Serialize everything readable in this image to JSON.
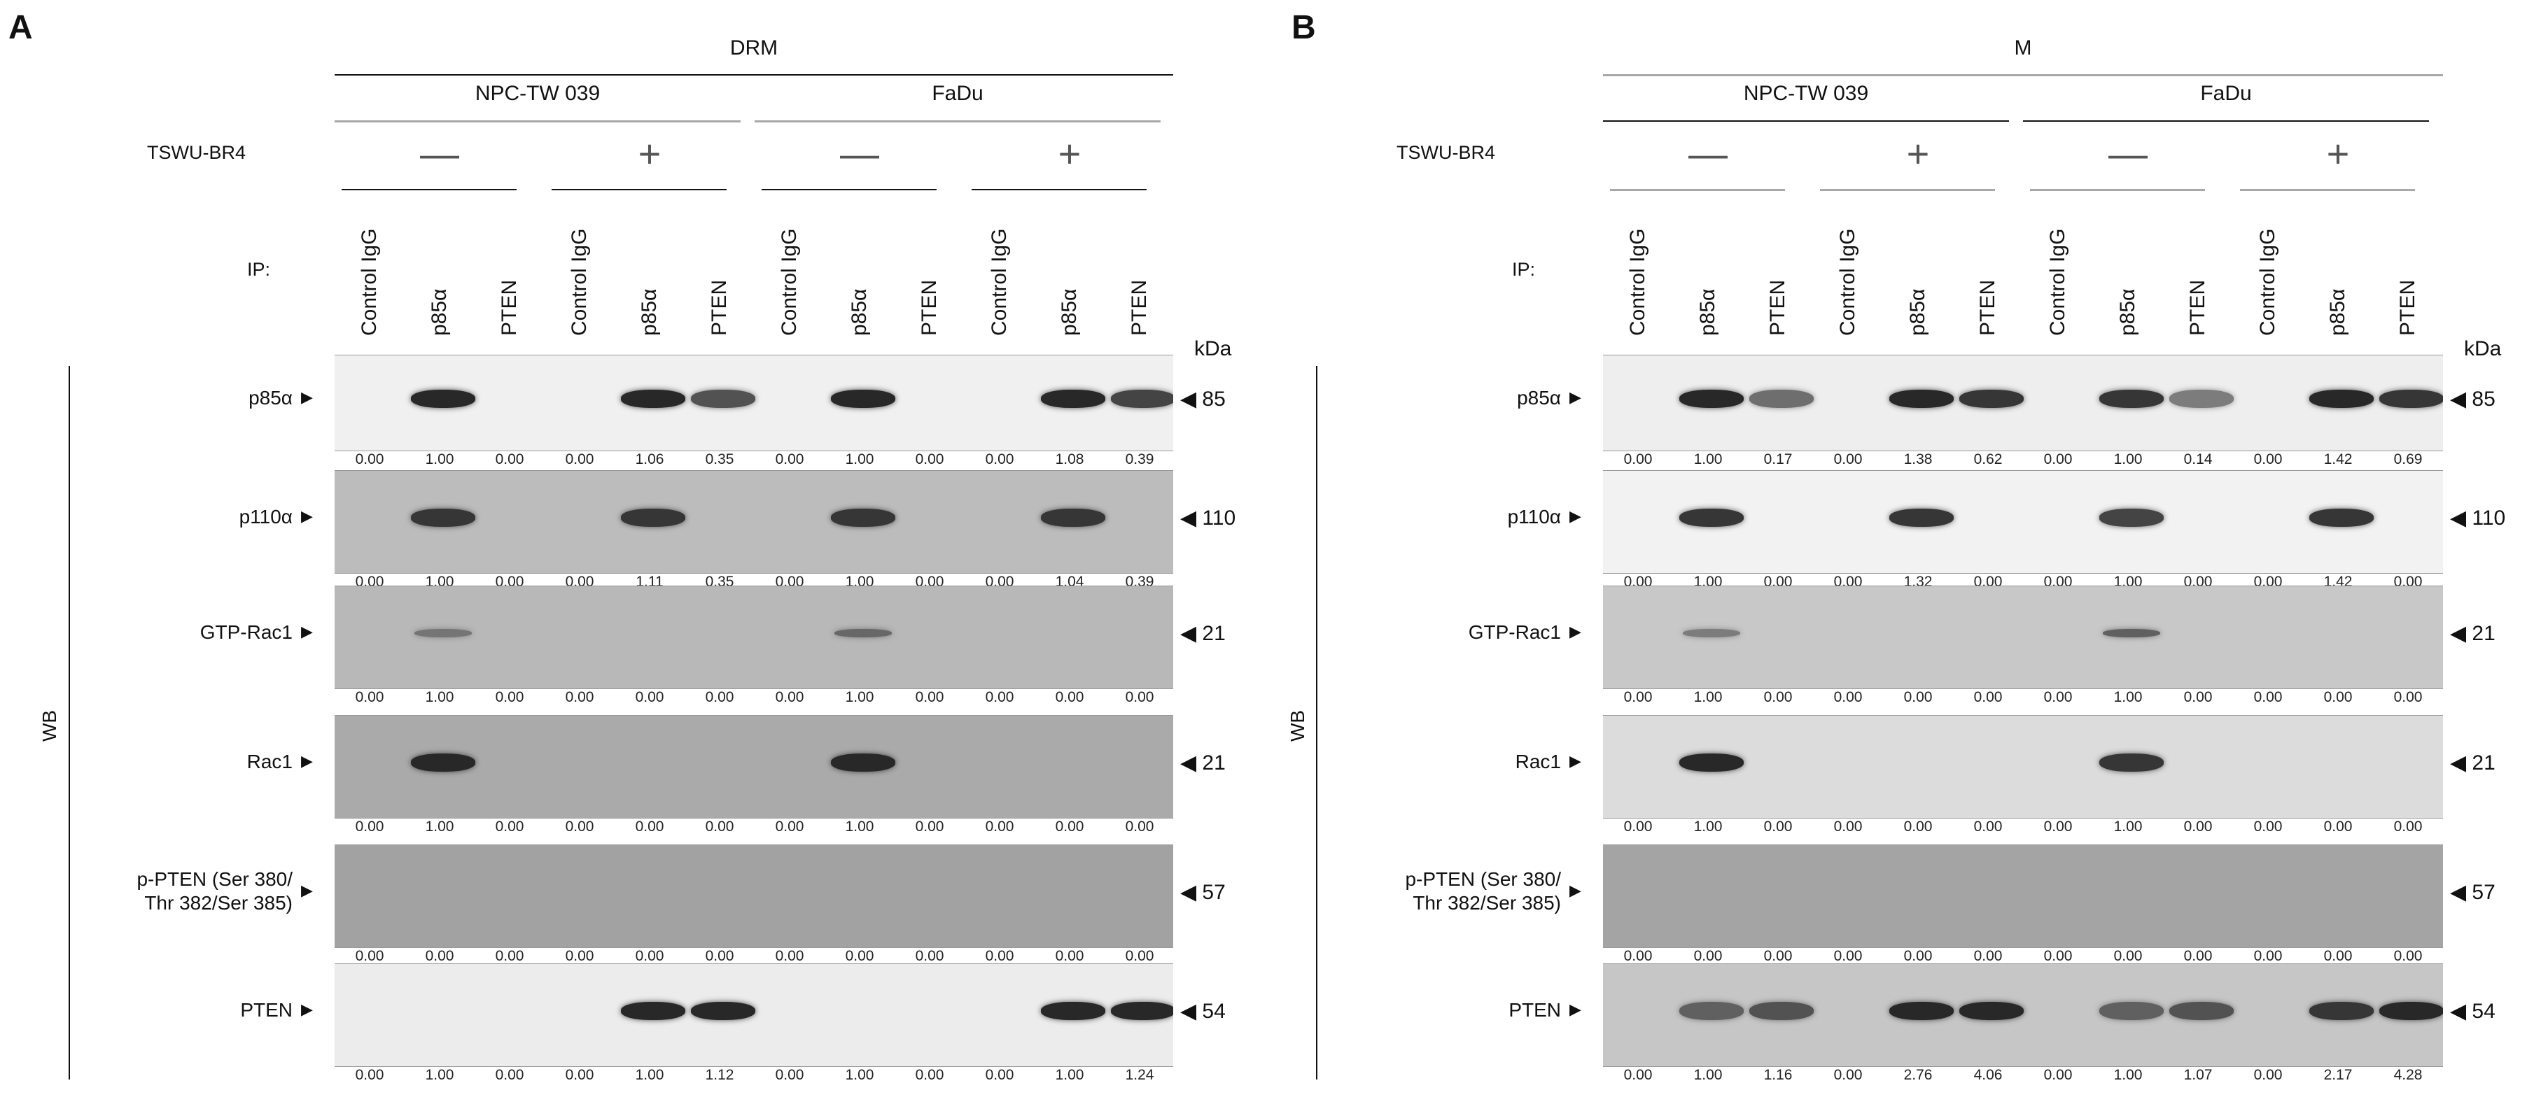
{
  "panels": [
    {
      "letter": "A",
      "fraction": "DRM",
      "cell_lines": [
        "NPC-TW 039",
        "FaDu"
      ],
      "treatment_label": "TSWU-BR4",
      "treatment_signs": [
        "—",
        "+",
        "—",
        "+"
      ],
      "ip_label": "IP:",
      "ip_lanes": [
        "Control IgG",
        "p85α",
        "PTEN",
        "Control IgG",
        "p85α",
        "PTEN",
        "Control IgG",
        "p85α",
        "PTEN",
        "Control IgG",
        "p85α",
        "PTEN"
      ],
      "kda_label": "kDa",
      "wb_label": "WB",
      "rows": [
        {
          "name": "p85α",
          "kda": "85",
          "values": [
            "0.00",
            "1.00",
            "0.00",
            "0.00",
            "1.06",
            "0.35",
            "0.00",
            "1.00",
            "0.00",
            "0.00",
            "1.08",
            "0.39"
          ]
        },
        {
          "name": "p110α",
          "kda": "110",
          "values": [
            "0.00",
            "1.00",
            "0.00",
            "0.00",
            "1.11",
            "0.35",
            "0.00",
            "1.00",
            "0.00",
            "0.00",
            "1.04",
            "0.39"
          ]
        },
        {
          "name": "GTP-Rac1",
          "kda": "21",
          "values": [
            "0.00",
            "1.00",
            "0.00",
            "0.00",
            "0.00",
            "0.00",
            "0.00",
            "1.00",
            "0.00",
            "0.00",
            "0.00",
            "0.00"
          ]
        },
        {
          "name": "Rac1",
          "kda": "21",
          "values": [
            "0.00",
            "1.00",
            "0.00",
            "0.00",
            "0.00",
            "0.00",
            "0.00",
            "1.00",
            "0.00",
            "0.00",
            "0.00",
            "0.00"
          ]
        },
        {
          "name": "p-PTEN (Ser 380/\nThr 382/Ser 385)",
          "kda": "57",
          "values": [
            "0.00",
            "0.00",
            "0.00",
            "0.00",
            "0.00",
            "0.00",
            "0.00",
            "0.00",
            "0.00",
            "0.00",
            "0.00",
            "0.00"
          ]
        },
        {
          "name": "PTEN",
          "kda": "54",
          "values": [
            "0.00",
            "1.00",
            "0.00",
            "0.00",
            "1.00",
            "1.12",
            "0.00",
            "1.00",
            "0.00",
            "0.00",
            "1.00",
            "1.24"
          ]
        }
      ]
    },
    {
      "letter": "B",
      "fraction": "M",
      "cell_lines": [
        "NPC-TW 039",
        "FaDu"
      ],
      "treatment_label": "TSWU-BR4",
      "treatment_signs": [
        "—",
        "+",
        "—",
        "+"
      ],
      "ip_label": "IP:",
      "ip_lanes": [
        "Control IgG",
        "p85α",
        "PTEN",
        "Control IgG",
        "p85α",
        "PTEN",
        "Control IgG",
        "p85α",
        "PTEN",
        "Control IgG",
        "p85α",
        "PTEN"
      ],
      "kda_label": "kDa",
      "wb_label": "WB",
      "rows": [
        {
          "name": "p85α",
          "kda": "85",
          "values": [
            "0.00",
            "1.00",
            "0.17",
            "0.00",
            "1.38",
            "0.62",
            "0.00",
            "1.00",
            "0.14",
            "0.00",
            "1.42",
            "0.69"
          ]
        },
        {
          "name": "p110α",
          "kda": "110",
          "values": [
            "0.00",
            "1.00",
            "0.00",
            "0.00",
            "1.32",
            "0.00",
            "0.00",
            "1.00",
            "0.00",
            "0.00",
            "1.42",
            "0.00"
          ]
        },
        {
          "name": "GTP-Rac1",
          "kda": "21",
          "values": [
            "0.00",
            "1.00",
            "0.00",
            "0.00",
            "0.00",
            "0.00",
            "0.00",
            "1.00",
            "0.00",
            "0.00",
            "0.00",
            "0.00"
          ]
        },
        {
          "name": "Rac1",
          "kda": "21",
          "values": [
            "0.00",
            "1.00",
            "0.00",
            "0.00",
            "0.00",
            "0.00",
            "0.00",
            "1.00",
            "0.00",
            "0.00",
            "0.00",
            "0.00"
          ]
        },
        {
          "name": "p-PTEN (Ser 380/\nThr 382/Ser 385)",
          "kda": "57",
          "values": [
            "0.00",
            "0.00",
            "0.00",
            "0.00",
            "0.00",
            "0.00",
            "0.00",
            "0.00",
            "0.00",
            "0.00",
            "0.00",
            "0.00"
          ]
        },
        {
          "name": "PTEN",
          "kda": "54",
          "values": [
            "0.00",
            "1.00",
            "1.16",
            "0.00",
            "2.76",
            "4.06",
            "0.00",
            "1.00",
            "1.07",
            "0.00",
            "2.17",
            "4.28"
          ]
        }
      ]
    }
  ]
}
